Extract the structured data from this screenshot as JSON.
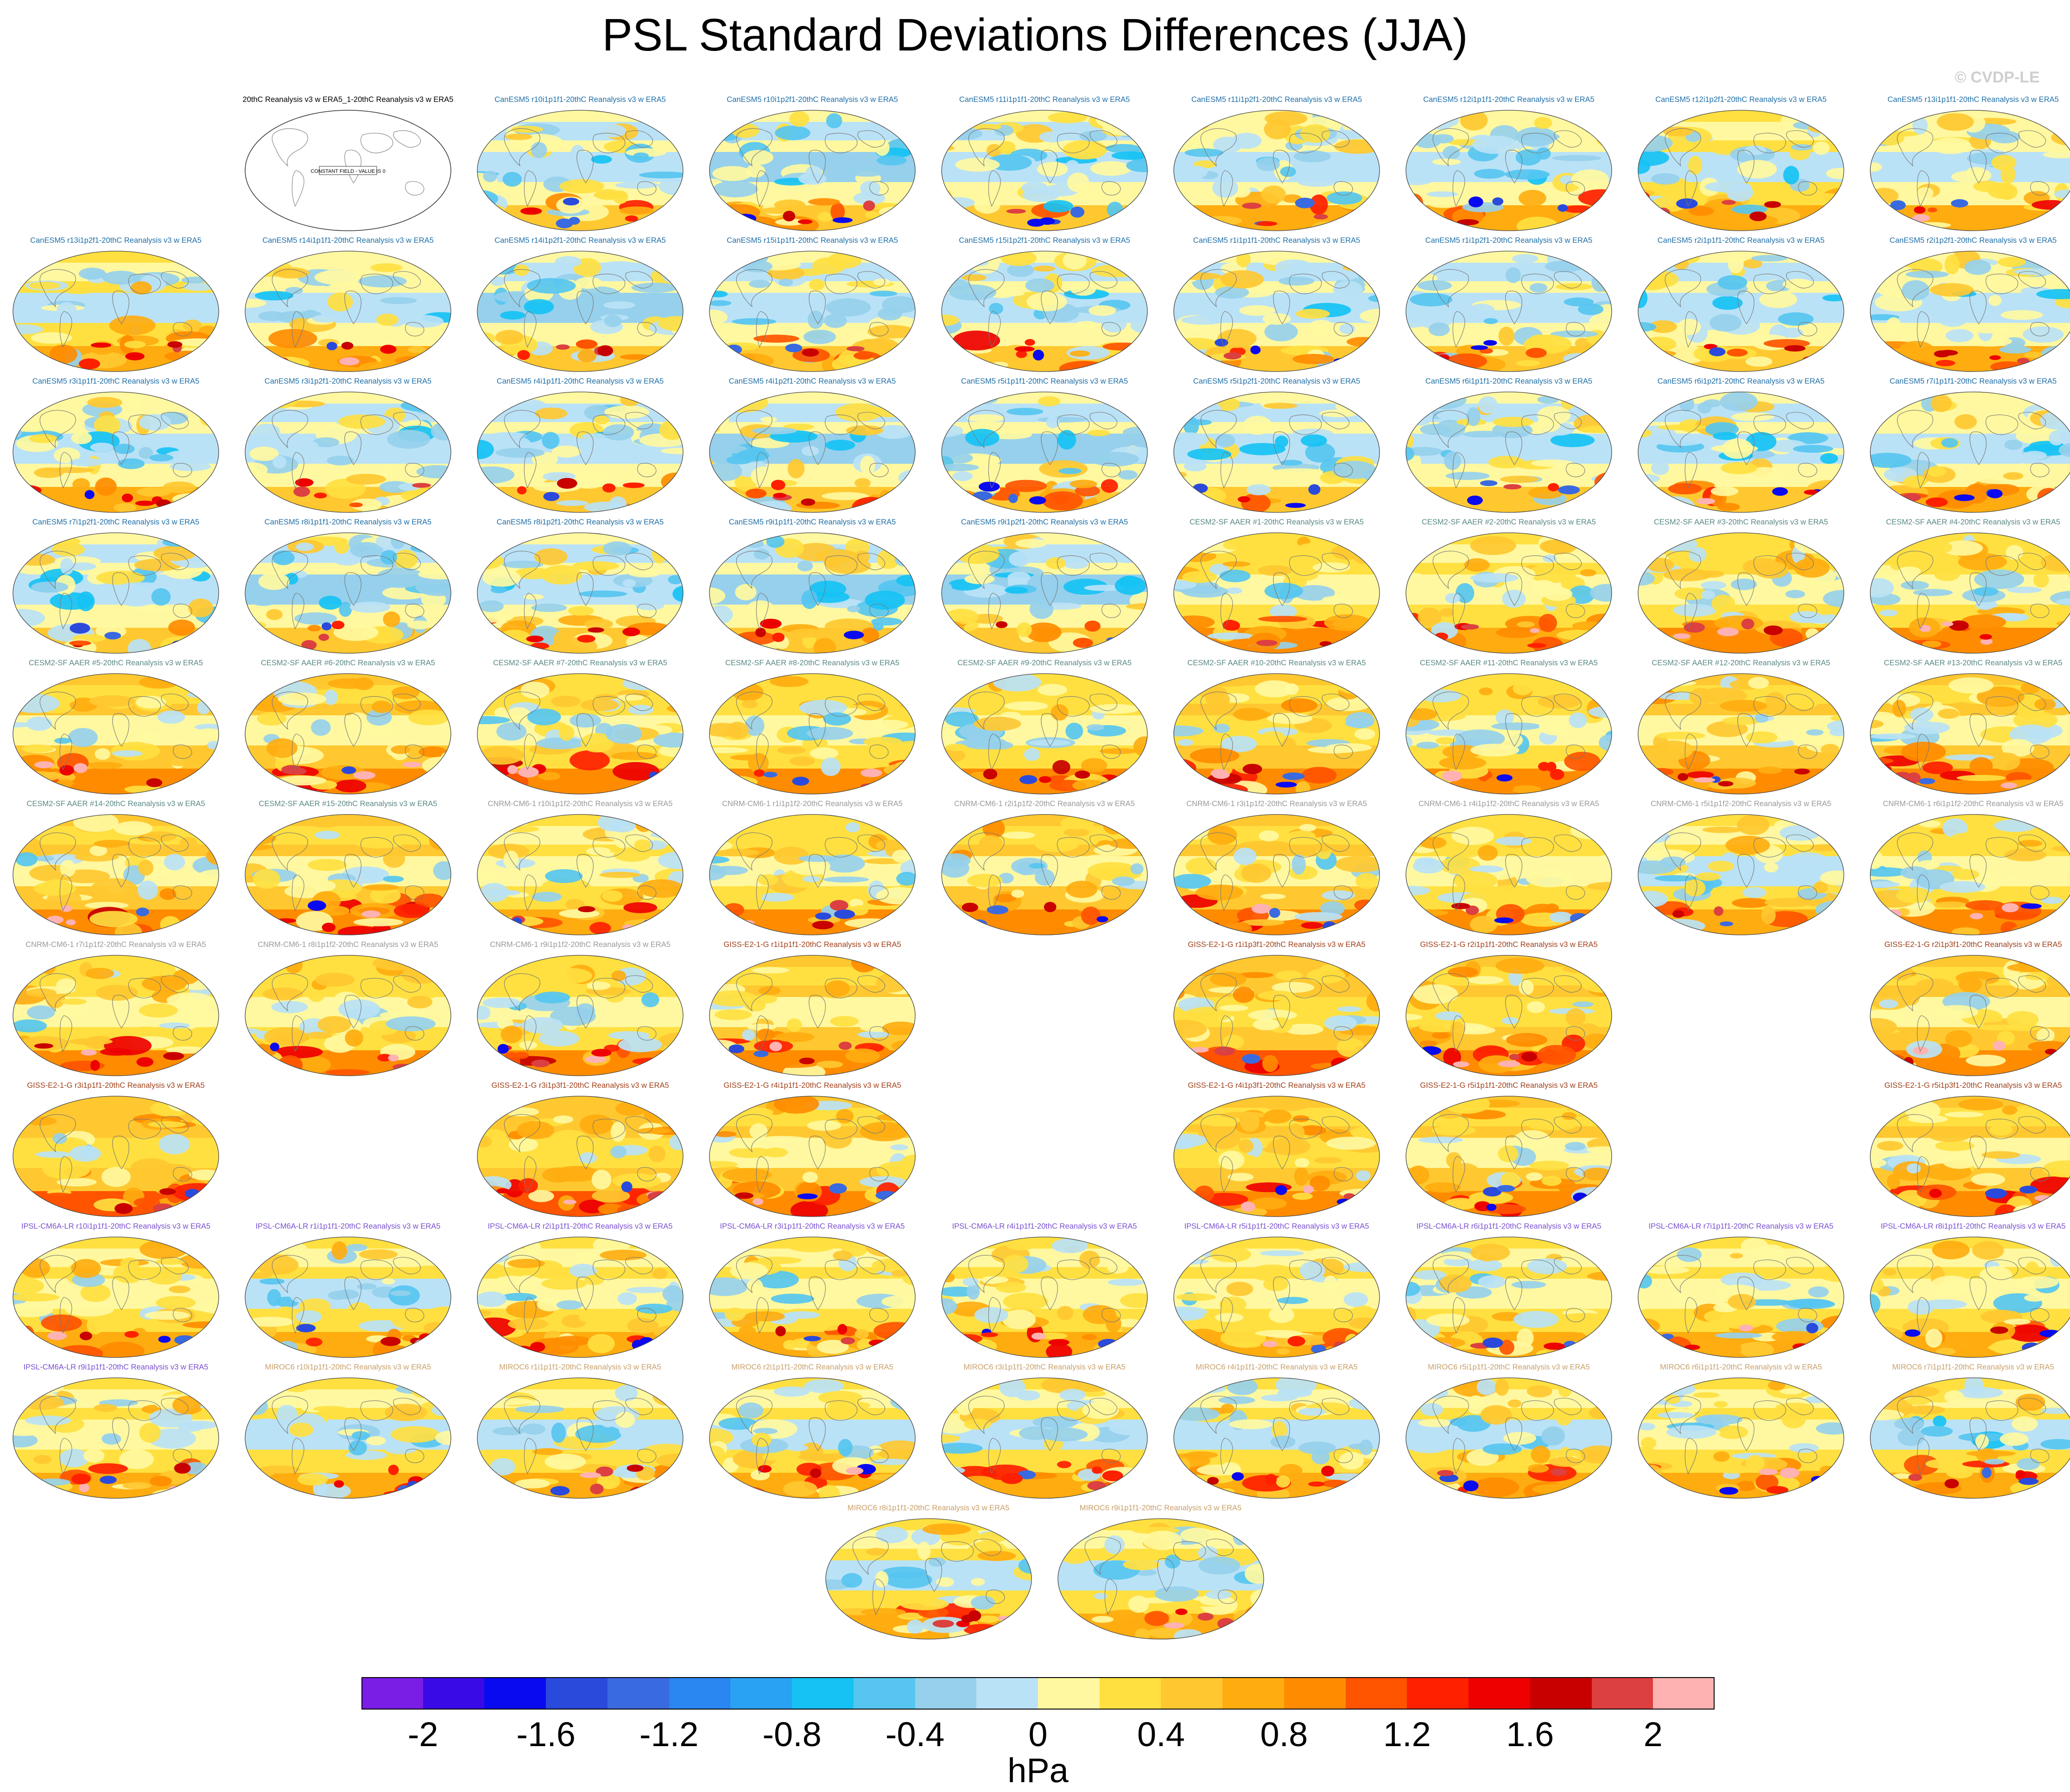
{
  "title": "PSL Standard Deviations Differences (JJA)",
  "credit": "© CVDP-LE",
  "units": "hPa",
  "constant_field_label": "CONSTANT FIELD - VALUE IS 0",
  "colors": {
    "CanESM5": "#1f6fa8",
    "CESM2-SF AAER": "#5a8a86",
    "CNRM-CM6-1": "#9a9a9a",
    "GISS-E2-1-G": "#a0401a",
    "IPSL-CM6A-LR": "#7a50d0",
    "MIROC6": "#c9a06a",
    "reference": "#000000"
  },
  "chart_data": {
    "type": "heatmap",
    "title": "PSL Standard Deviations Differences (JJA)",
    "units": "hPa",
    "colorbar": {
      "min": -2.2,
      "max": 2.2,
      "step": 0.2,
      "tick_labels": [
        "-2",
        "-1.6",
        "-1.2",
        "-0.8",
        "-0.4",
        "0",
        "0.4",
        "0.8",
        "1.2",
        "1.6",
        "2"
      ],
      "tick_values": [
        -2,
        -1.6,
        -1.2,
        -0.8,
        -0.4,
        0,
        0.4,
        0.8,
        1.2,
        1.6,
        2
      ],
      "colors": [
        "#7a1ee6",
        "#3a0ae6",
        "#0a0af0",
        "#2a4adc",
        "#3a6ae0",
        "#2a86f0",
        "#2aa2f4",
        "#16c2f4",
        "#56c6f0",
        "#96d0ec",
        "#bae2f6",
        "#fff8a0",
        "#ffe040",
        "#ffc830",
        "#ffac10",
        "#ff8c00",
        "#ff5400",
        "#ff2000",
        "#ee0000",
        "#c80000",
        "#dc4040",
        "#ffb2b2"
      ]
    },
    "panels": [
      {
        "col": 1,
        "row": 0,
        "title": "20thC Reanalysis v3 w ERA5_1-20thC Reanalysis v3 w ERA5",
        "group": "reference",
        "constant": true
      },
      {
        "col": 2,
        "row": 0,
        "title": "CanESM5 r10i1p1f1-20thC Reanalysis v3 w ERA5",
        "group": "CanESM5",
        "bias": 0.05
      },
      {
        "col": 3,
        "row": 0,
        "title": "CanESM5 r10i1p2f1-20thC Reanalysis v3 w ERA5",
        "group": "CanESM5",
        "bias": 0.0
      },
      {
        "col": 4,
        "row": 0,
        "title": "CanESM5 r11i1p1f1-20thC Reanalysis v3 w ERA5",
        "group": "CanESM5",
        "bias": 0.05
      },
      {
        "col": 5,
        "row": 0,
        "title": "CanESM5 r11i1p2f1-20thC Reanalysis v3 w ERA5",
        "group": "CanESM5",
        "bias": 0.1
      },
      {
        "col": 6,
        "row": 0,
        "title": "CanESM5 r12i1p1f1-20thC Reanalysis v3 w ERA5",
        "group": "CanESM5",
        "bias": 0.1
      },
      {
        "col": 7,
        "row": 0,
        "title": "CanESM5 r12i1p2f1-20thC Reanalysis v3 w ERA5",
        "group": "CanESM5",
        "bias": 0.15
      },
      {
        "col": 8,
        "row": 0,
        "title": "CanESM5 r13i1p1f1-20thC Reanalysis v3 w ERA5",
        "group": "CanESM5",
        "bias": 0.1
      },
      {
        "col": 0,
        "row": 1,
        "title": "CanESM5 r13i1p2f1-20thC Reanalysis v3 w ERA5",
        "group": "CanESM5",
        "bias": 0.15
      },
      {
        "col": 1,
        "row": 1,
        "title": "CanESM5 r14i1p1f1-20thC Reanalysis v3 w ERA5",
        "group": "CanESM5",
        "bias": 0.1
      },
      {
        "col": 2,
        "row": 1,
        "title": "CanESM5 r14i1p2f1-20thC Reanalysis v3 w ERA5",
        "group": "CanESM5",
        "bias": 0.0
      },
      {
        "col": 3,
        "row": 1,
        "title": "CanESM5 r15i1p1f1-20thC Reanalysis v3 w ERA5",
        "group": "CanESM5",
        "bias": 0.05
      },
      {
        "col": 4,
        "row": 1,
        "title": "CanESM5 r15i1p2f1-20thC Reanalysis v3 w ERA5",
        "group": "CanESM5",
        "bias": 0.05
      },
      {
        "col": 5,
        "row": 1,
        "title": "CanESM5 r1i1p1f1-20thC Reanalysis v3 w ERA5",
        "group": "CanESM5",
        "bias": 0.05
      },
      {
        "col": 6,
        "row": 1,
        "title": "CanESM5 r1i1p2f1-20thC Reanalysis v3 w ERA5",
        "group": "CanESM5",
        "bias": 0.05
      },
      {
        "col": 7,
        "row": 1,
        "title": "CanESM5 r2i1p1f1-20thC Reanalysis v3 w ERA5",
        "group": "CanESM5",
        "bias": 0.05
      },
      {
        "col": 8,
        "row": 1,
        "title": "CanESM5 r2i1p2f1-20thC Reanalysis v3 w ERA5",
        "group": "CanESM5",
        "bias": 0.1
      },
      {
        "col": 0,
        "row": 2,
        "title": "CanESM5 r3i1p1f1-20thC Reanalysis v3 w ERA5",
        "group": "CanESM5",
        "bias": 0.1
      },
      {
        "col": 1,
        "row": 2,
        "title": "CanESM5 r3i1p2f1-20thC Reanalysis v3 w ERA5",
        "group": "CanESM5",
        "bias": 0.05
      },
      {
        "col": 2,
        "row": 2,
        "title": "CanESM5 r4i1p1f1-20thC Reanalysis v3 w ERA5",
        "group": "CanESM5",
        "bias": 0.05
      },
      {
        "col": 3,
        "row": 2,
        "title": "CanESM5 r4i1p2f1-20thC Reanalysis v3 w ERA5",
        "group": "CanESM5",
        "bias": 0.0
      },
      {
        "col": 4,
        "row": 2,
        "title": "CanESM5 r5i1p1f1-20thC Reanalysis v3 w ERA5",
        "group": "CanESM5",
        "bias": 0.0
      },
      {
        "col": 5,
        "row": 2,
        "title": "CanESM5 r5i1p2f1-20thC Reanalysis v3 w ERA5",
        "group": "CanESM5",
        "bias": 0.05
      },
      {
        "col": 6,
        "row": 2,
        "title": "CanESM5 r6i1p1f1-20thC Reanalysis v3 w ERA5",
        "group": "CanESM5",
        "bias": 0.05
      },
      {
        "col": 7,
        "row": 2,
        "title": "CanESM5 r6i1p2f1-20thC Reanalysis v3 w ERA5",
        "group": "CanESM5",
        "bias": 0.05
      },
      {
        "col": 8,
        "row": 2,
        "title": "CanESM5 r7i1p1f1-20thC Reanalysis v3 w ERA5",
        "group": "CanESM5",
        "bias": 0.1
      },
      {
        "col": 0,
        "row": 3,
        "title": "CanESM5 r7i1p2f1-20thC Reanalysis v3 w ERA5",
        "group": "CanESM5",
        "bias": 0.05
      },
      {
        "col": 1,
        "row": 3,
        "title": "CanESM5 r8i1p1f1-20thC Reanalysis v3 w ERA5",
        "group": "CanESM5",
        "bias": 0.0
      },
      {
        "col": 2,
        "row": 3,
        "title": "CanESM5 r8i1p2f1-20thC Reanalysis v3 w ERA5",
        "group": "CanESM5",
        "bias": 0.05
      },
      {
        "col": 3,
        "row": 3,
        "title": "CanESM5 r9i1p1f1-20thC Reanalysis v3 w ERA5",
        "group": "CanESM5",
        "bias": 0.0
      },
      {
        "col": 4,
        "row": 3,
        "title": "CanESM5 r9i1p2f1-20thC Reanalysis v3 w ERA5",
        "group": "CanESM5",
        "bias": 0.0
      },
      {
        "col": 5,
        "row": 3,
        "title": "CESM2-SF AAER #1-20thC Reanalysis v3 w ERA5",
        "group": "CESM2-SF AAER",
        "bias": 0.3
      },
      {
        "col": 6,
        "row": 3,
        "title": "CESM2-SF AAER #2-20thC Reanalysis v3 w ERA5",
        "group": "CESM2-SF AAER",
        "bias": 0.25
      },
      {
        "col": 7,
        "row": 3,
        "title": "CESM2-SF AAER #3-20thC Reanalysis v3 w ERA5",
        "group": "CESM2-SF AAER",
        "bias": 0.3
      },
      {
        "col": 8,
        "row": 3,
        "title": "CESM2-SF AAER #4-20thC Reanalysis v3 w ERA5",
        "group": "CESM2-SF AAER",
        "bias": 0.3
      },
      {
        "col": 0,
        "row": 4,
        "title": "CESM2-SF AAER #5-20thC Reanalysis v3 w ERA5",
        "group": "CESM2-SF AAER",
        "bias": 0.35
      },
      {
        "col": 1,
        "row": 4,
        "title": "CESM2-SF AAER #6-20thC Reanalysis v3 w ERA5",
        "group": "CESM2-SF AAER",
        "bias": 0.35
      },
      {
        "col": 2,
        "row": 4,
        "title": "CESM2-SF AAER #7-20thC Reanalysis v3 w ERA5",
        "group": "CESM2-SF AAER",
        "bias": 0.3
      },
      {
        "col": 3,
        "row": 4,
        "title": "CESM2-SF AAER #8-20thC Reanalysis v3 w ERA5",
        "group": "CESM2-SF AAER",
        "bias": 0.3
      },
      {
        "col": 4,
        "row": 4,
        "title": "CESM2-SF AAER #9-20thC Reanalysis v3 w ERA5",
        "group": "CESM2-SF AAER",
        "bias": 0.3
      },
      {
        "col": 5,
        "row": 4,
        "title": "CESM2-SF AAER #10-20thC Reanalysis v3 w ERA5",
        "group": "CESM2-SF AAER",
        "bias": 0.45
      },
      {
        "col": 6,
        "row": 4,
        "title": "CESM2-SF AAER #11-20thC Reanalysis v3 w ERA5",
        "group": "CESM2-SF AAER",
        "bias": 0.3
      },
      {
        "col": 7,
        "row": 4,
        "title": "CESM2-SF AAER #12-20thC Reanalysis v3 w ERA5",
        "group": "CESM2-SF AAER",
        "bias": 0.35
      },
      {
        "col": 8,
        "row": 4,
        "title": "CESM2-SF AAER #13-20thC Reanalysis v3 w ERA5",
        "group": "CESM2-SF AAER",
        "bias": 0.35
      },
      {
        "col": 0,
        "row": 5,
        "title": "CESM2-SF AAER #14-20thC Reanalysis v3 w ERA5",
        "group": "CESM2-SF AAER",
        "bias": 0.35
      },
      {
        "col": 1,
        "row": 5,
        "title": "CESM2-SF AAER #15-20thC Reanalysis v3 w ERA5",
        "group": "CESM2-SF AAER",
        "bias": 0.35
      },
      {
        "col": 2,
        "row": 5,
        "title": "CNRM-CM6-1 r10i1p1f2-20thC Reanalysis v3 w ERA5",
        "group": "CNRM-CM6-1",
        "bias": 0.25
      },
      {
        "col": 3,
        "row": 5,
        "title": "CNRM-CM6-1 r1i1p1f2-20thC Reanalysis v3 w ERA5",
        "group": "CNRM-CM6-1",
        "bias": 0.3
      },
      {
        "col": 4,
        "row": 5,
        "title": "CNRM-CM6-1 r2i1p1f2-20thC Reanalysis v3 w ERA5",
        "group": "CNRM-CM6-1",
        "bias": 0.35
      },
      {
        "col": 5,
        "row": 5,
        "title": "CNRM-CM6-1 r3i1p1f2-20thC Reanalysis v3 w ERA5",
        "group": "CNRM-CM6-1",
        "bias": 0.35
      },
      {
        "col": 6,
        "row": 5,
        "title": "CNRM-CM6-1 r4i1p1f2-20thC Reanalysis v3 w ERA5",
        "group": "CNRM-CM6-1",
        "bias": 0.3
      },
      {
        "col": 7,
        "row": 5,
        "title": "CNRM-CM6-1 r5i1p1f2-20thC Reanalysis v3 w ERA5",
        "group": "CNRM-CM6-1",
        "bias": 0.2
      },
      {
        "col": 8,
        "row": 5,
        "title": "CNRM-CM6-1 r6i1p1f2-20thC Reanalysis v3 w ERA5",
        "group": "CNRM-CM6-1",
        "bias": 0.3
      },
      {
        "col": 0,
        "row": 6,
        "title": "CNRM-CM6-1 r7i1p1f2-20thC Reanalysis v3 w ERA5",
        "group": "CNRM-CM6-1",
        "bias": 0.3
      },
      {
        "col": 1,
        "row": 6,
        "title": "CNRM-CM6-1 r8i1p1f2-20thC Reanalysis v3 w ERA5",
        "group": "CNRM-CM6-1",
        "bias": 0.3
      },
      {
        "col": 2,
        "row": 6,
        "title": "CNRM-CM6-1 r9i1p1f2-20thC Reanalysis v3 w ERA5",
        "group": "CNRM-CM6-1",
        "bias": 0.3
      },
      {
        "col": 3,
        "row": 6,
        "title": "GISS-E2-1-G r1i1p1f1-20thC Reanalysis v3 w ERA5",
        "group": "GISS-E2-1-G",
        "bias": 0.4
      },
      {
        "col": 5,
        "row": 6,
        "title": "GISS-E2-1-G r1i1p3f1-20thC Reanalysis v3 w ERA5",
        "group": "GISS-E2-1-G",
        "bias": 0.5
      },
      {
        "col": 6,
        "row": 6,
        "title": "GISS-E2-1-G r2i1p1f1-20thC Reanalysis v3 w ERA5",
        "group": "GISS-E2-1-G",
        "bias": 0.45
      },
      {
        "col": 8,
        "row": 6,
        "title": "GISS-E2-1-G r2i1p3f1-20thC Reanalysis v3 w ERA5",
        "group": "GISS-E2-1-G",
        "bias": 0.4
      },
      {
        "col": 0,
        "row": 7,
        "title": "GISS-E2-1-G r3i1p1f1-20thC Reanalysis v3 w ERA5",
        "group": "GISS-E2-1-G",
        "bias": 0.5
      },
      {
        "col": 2,
        "row": 7,
        "title": "GISS-E2-1-G r3i1p3f1-20thC Reanalysis v3 w ERA5",
        "group": "GISS-E2-1-G",
        "bias": 0.5
      },
      {
        "col": 3,
        "row": 7,
        "title": "GISS-E2-1-G r4i1p1f1-20thC Reanalysis v3 w ERA5",
        "group": "GISS-E2-1-G",
        "bias": 0.4
      },
      {
        "col": 5,
        "row": 7,
        "title": "GISS-E2-1-G r4i1p3f1-20thC Reanalysis v3 w ERA5",
        "group": "GISS-E2-1-G",
        "bias": 0.45
      },
      {
        "col": 6,
        "row": 7,
        "title": "GISS-E2-1-G r5i1p1f1-20thC Reanalysis v3 w ERA5",
        "group": "GISS-E2-1-G",
        "bias": 0.4
      },
      {
        "col": 8,
        "row": 7,
        "title": "GISS-E2-1-G r5i1p3f1-20thC Reanalysis v3 w ERA5",
        "group": "GISS-E2-1-G",
        "bias": 0.4
      },
      {
        "col": 0,
        "row": 8,
        "title": "IPSL-CM6A-LR r10i1p1f1-20thC Reanalysis v3 w ERA5",
        "group": "IPSL-CM6A-LR",
        "bias": 0.25
      },
      {
        "col": 1,
        "row": 8,
        "title": "IPSL-CM6A-LR r1i1p1f1-20thC Reanalysis v3 w ERA5",
        "group": "IPSL-CM6A-LR",
        "bias": 0.2
      },
      {
        "col": 2,
        "row": 8,
        "title": "IPSL-CM6A-LR r2i1p1f1-20thC Reanalysis v3 w ERA5",
        "group": "IPSL-CM6A-LR",
        "bias": 0.25
      },
      {
        "col": 3,
        "row": 8,
        "title": "IPSL-CM6A-LR r3i1p1f1-20thC Reanalysis v3 w ERA5",
        "group": "IPSL-CM6A-LR",
        "bias": 0.25
      },
      {
        "col": 4,
        "row": 8,
        "title": "IPSL-CM6A-LR r4i1p1f1-20thC Reanalysis v3 w ERA5",
        "group": "IPSL-CM6A-LR",
        "bias": 0.25
      },
      {
        "col": 5,
        "row": 8,
        "title": "IPSL-CM6A-LR r5i1p1f1-20thC Reanalysis v3 w ERA5",
        "group": "IPSL-CM6A-LR",
        "bias": 0.25
      },
      {
        "col": 6,
        "row": 8,
        "title": "IPSL-CM6A-LR r6i1p1f1-20thC Reanalysis v3 w ERA5",
        "group": "IPSL-CM6A-LR",
        "bias": 0.25
      },
      {
        "col": 7,
        "row": 8,
        "title": "IPSL-CM6A-LR r7i1p1f1-20thC Reanalysis v3 w ERA5",
        "group": "IPSL-CM6A-LR",
        "bias": 0.25
      },
      {
        "col": 8,
        "row": 8,
        "title": "IPSL-CM6A-LR r8i1p1f1-20thC Reanalysis v3 w ERA5",
        "group": "IPSL-CM6A-LR",
        "bias": 0.25
      },
      {
        "col": 0,
        "row": 9,
        "title": "IPSL-CM6A-LR r9i1p1f1-20thC Reanalysis v3 w ERA5",
        "group": "IPSL-CM6A-LR",
        "bias": 0.25
      },
      {
        "col": 1,
        "row": 9,
        "title": "MIROC6 r10i1p1f1-20thC Reanalysis v3 w ERA5",
        "group": "MIROC6",
        "bias": 0.15
      },
      {
        "col": 2,
        "row": 9,
        "title": "MIROC6 r1i1p1f1-20thC Reanalysis v3 w ERA5",
        "group": "MIROC6",
        "bias": 0.15
      },
      {
        "col": 3,
        "row": 9,
        "title": "MIROC6 r2i1p1f1-20thC Reanalysis v3 w ERA5",
        "group": "MIROC6",
        "bias": 0.2
      },
      {
        "col": 4,
        "row": 9,
        "title": "MIROC6 r3i1p1f1-20thC Reanalysis v3 w ERA5",
        "group": "MIROC6",
        "bias": 0.15
      },
      {
        "col": 5,
        "row": 9,
        "title": "MIROC6 r4i1p1f1-20thC Reanalysis v3 w ERA5",
        "group": "MIROC6",
        "bias": 0.2
      },
      {
        "col": 6,
        "row": 9,
        "title": "MIROC6 r5i1p1f1-20thC Reanalysis v3 w ERA5",
        "group": "MIROC6",
        "bias": 0.2
      },
      {
        "col": 7,
        "row": 9,
        "title": "MIROC6 r6i1p1f1-20thC Reanalysis v3 w ERA5",
        "group": "MIROC6",
        "bias": 0.25
      },
      {
        "col": 8,
        "row": 9,
        "title": "MIROC6 r7i1p1f1-20thC Reanalysis v3 w ERA5",
        "group": "MIROC6",
        "bias": 0.15
      },
      {
        "col": 3.5,
        "row": 10,
        "title": "MIROC6 r8i1p1f1-20thC Reanalysis v3 w ERA5",
        "group": "MIROC6",
        "bias": 0.2
      },
      {
        "col": 4.5,
        "row": 10,
        "title": "MIROC6 r9i1p1f1-20thC Reanalysis v3 w ERA5",
        "group": "MIROC6",
        "bias": 0.15
      }
    ]
  }
}
